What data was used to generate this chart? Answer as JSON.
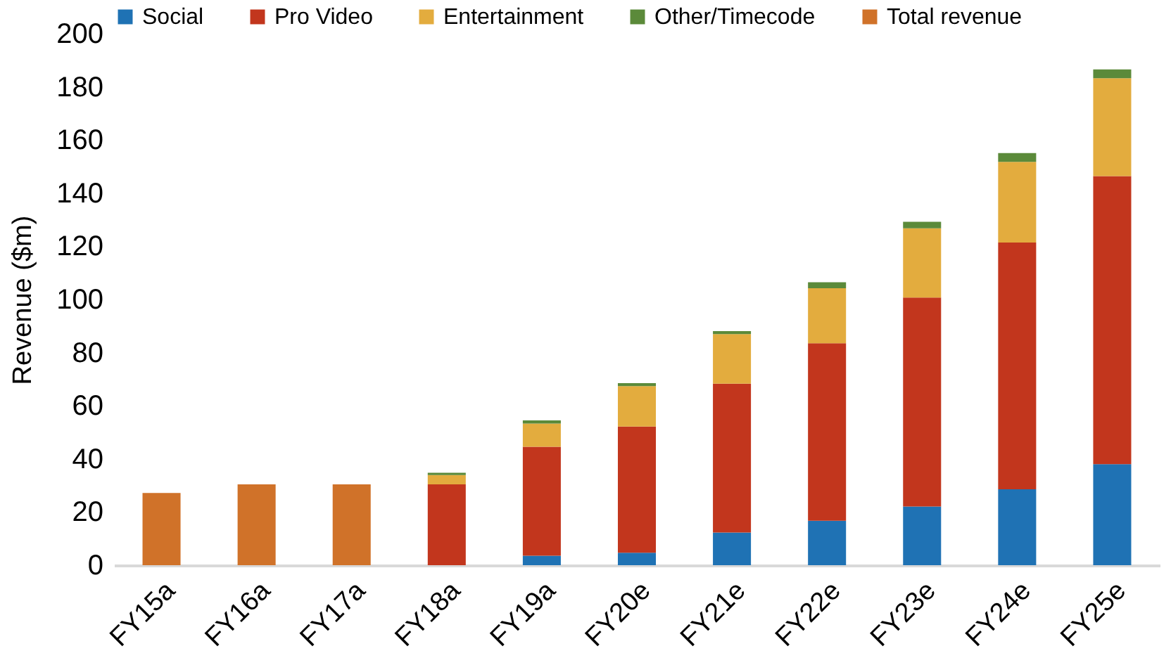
{
  "chart_data": {
    "type": "bar",
    "stacked": true,
    "ylabel": "Revenue ($m)",
    "categories": [
      "FY15a",
      "FY16a",
      "FY17a",
      "FY18a",
      "FY19a",
      "FY20e",
      "FY21e",
      "FY22e",
      "FY23e",
      "FY24e",
      "FY25e"
    ],
    "series": [
      {
        "name": "Social",
        "color": "#1f72b4",
        "values": [
          null,
          null,
          null,
          null,
          3.6,
          4.7,
          12.3,
          16.7,
          22.1,
          28.6,
          38
        ]
      },
      {
        "name": "Pro Video",
        "color": "#c2361d",
        "values": [
          null,
          null,
          null,
          30.4,
          41,
          47.5,
          56,
          66.8,
          78.6,
          92.8,
          108.4
        ]
      },
      {
        "name": "Entertainment",
        "color": "#e3ac3e",
        "values": [
          null,
          null,
          null,
          3.5,
          8.7,
          15.2,
          18.7,
          20.7,
          26.1,
          30.4,
          36.9
        ]
      },
      {
        "name": "Other/Timecode",
        "color": "#5b8a3a",
        "values": [
          null,
          null,
          null,
          0.9,
          1.2,
          1.1,
          1.1,
          2.3,
          2.4,
          3.3,
          3.3
        ]
      },
      {
        "name": "Total revenue",
        "color": "#d07229",
        "values": [
          27.2,
          30.4,
          30.4,
          null,
          null,
          null,
          null,
          null,
          null,
          null,
          null
        ]
      }
    ],
    "ylim": [
      0,
      200
    ],
    "yticks": [
      0,
      20,
      40,
      60,
      80,
      100,
      120,
      140,
      160,
      180,
      200
    ],
    "grid": false,
    "legend": "top"
  }
}
